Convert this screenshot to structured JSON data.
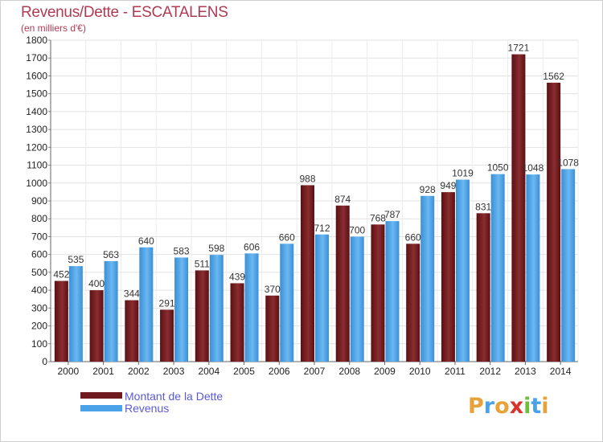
{
  "header": {
    "title": "Revenus/Dette - ESCATALENS",
    "subtitle": "(en milliers d'€)"
  },
  "legend": {
    "items": [
      {
        "label": "Montant de la Dette",
        "color": "#6e1a1e"
      },
      {
        "label": "Revenus",
        "color": "#4aa3e8"
      }
    ]
  },
  "logo": {
    "text": "Proxiti",
    "letters": [
      {
        "ch": "P",
        "color": "#e8a23a"
      },
      {
        "ch": "r",
        "color": "#4aa3e8"
      },
      {
        "ch": "o",
        "color": "#e8a23a"
      },
      {
        "ch": "x",
        "color": "#d9342b"
      },
      {
        "ch": "i",
        "color": "#6cbf3a"
      },
      {
        "ch": "t",
        "color": "#4aa3e8"
      },
      {
        "ch": "i",
        "color": "#e8a23a"
      }
    ]
  },
  "chart_data": {
    "type": "bar",
    "categories": [
      "2000",
      "2001",
      "2002",
      "2003",
      "2004",
      "2005",
      "2006",
      "2007",
      "2008",
      "2009",
      "2010",
      "2011",
      "2012",
      "2013",
      "2014"
    ],
    "series": [
      {
        "name": "Montant de la Dette",
        "values": [
          452,
          400,
          344,
          291,
          511,
          439,
          370,
          988,
          874,
          768,
          660,
          949,
          831,
          1721,
          1562
        ],
        "color": "#6e1a1e"
      },
      {
        "name": "Revenus",
        "values": [
          535,
          563,
          640,
          583,
          598,
          606,
          660,
          712,
          700,
          787,
          928,
          1019,
          1050,
          1048,
          1078
        ],
        "color": "#4aa3e8"
      }
    ],
    "ylim": [
      0,
      1800
    ],
    "yticks": [
      0,
      100,
      200,
      300,
      400,
      500,
      600,
      700,
      800,
      900,
      1000,
      1100,
      1200,
      1300,
      1400,
      1500,
      1600,
      1700,
      1800
    ],
    "grid": true,
    "legend_position": "bottom-left"
  }
}
